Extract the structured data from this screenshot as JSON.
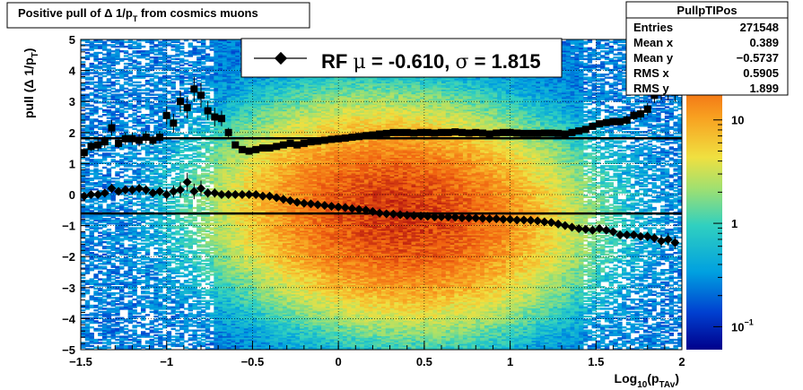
{
  "title": {
    "prefix": "Positive pull of ",
    "delta": "Δ",
    "mid": " 1/p",
    "sub": "T",
    "suffix": " from cosmics muons"
  },
  "stats": {
    "name": "PullpTIPos",
    "rows": [
      {
        "label": "Entries",
        "value": "271548"
      },
      {
        "label": "Mean x",
        "value": "0.389"
      },
      {
        "label": "Mean y",
        "value": "−0.5737"
      },
      {
        "label": "RMS x",
        "value": "0.5905"
      },
      {
        "label": "RMS y",
        "value": "1.899"
      }
    ]
  },
  "legend": {
    "text_prefix": "RF ",
    "mu": "μ",
    "mid": " = -0.610, ",
    "sigma": "σ",
    "suffix": " =   1.815"
  },
  "colors": {
    "marker": "#000000",
    "fit_line": "#000000"
  },
  "chart_data": {
    "type": "heatmap",
    "x_axis": {
      "label_base": "Log",
      "label_sub1": "10",
      "label_paren_open": "(p",
      "label_sub2": "TAv",
      "label_paren_close": ")",
      "range": [
        -1.5,
        2.0
      ],
      "ticks": [
        -1.5,
        -1,
        -0.5,
        0,
        0.5,
        1,
        1.5,
        2
      ],
      "tick_labels": [
        "−1.5",
        "−1",
        "−0.5",
        "0",
        "0.5",
        "1",
        "1.5",
        "2"
      ]
    },
    "y_axis": {
      "label_prefix": "pull (",
      "label_delta": "Δ",
      "label_mid": " 1/p",
      "label_sub": "T",
      "label_close": ")",
      "range": [
        -5,
        5
      ],
      "ticks": [
        -5,
        -4,
        -3,
        -2,
        -1,
        0,
        1,
        2,
        3,
        4,
        5
      ],
      "tick_labels": [
        "−5",
        "−4",
        "−3",
        "−2",
        "−1",
        "0",
        "1",
        "2",
        "3",
        "4",
        "5"
      ]
    },
    "z_axis": {
      "scale": "log",
      "range": [
        0.06,
        60
      ],
      "ticks": [
        0.1,
        1,
        10
      ],
      "tick_labels": [
        {
          "base": "10",
          "exp": "−1"
        },
        {
          "base": "1",
          "exp": ""
        },
        {
          "base": "10",
          "exp": ""
        }
      ]
    },
    "grid": true,
    "fit_lines": {
      "mean": -0.61,
      "sigma": 1.815
    },
    "series": [
      {
        "label": "RMS profile",
        "marker": "square",
        "x": [
          -1.48,
          -1.44,
          -1.4,
          -1.36,
          -1.32,
          -1.28,
          -1.24,
          -1.2,
          -1.16,
          -1.12,
          -1.08,
          -1.04,
          -1.0,
          -0.96,
          -0.92,
          -0.88,
          -0.84,
          -0.8,
          -0.76,
          -0.72,
          -0.68,
          -0.64,
          -0.6,
          -0.56,
          -0.52,
          -0.48,
          -0.44,
          -0.4,
          -0.36,
          -0.32,
          -0.28,
          -0.24,
          -0.2,
          -0.16,
          -0.12,
          -0.08,
          -0.04,
          0.0,
          0.04,
          0.08,
          0.12,
          0.16,
          0.2,
          0.24,
          0.28,
          0.32,
          0.36,
          0.4,
          0.44,
          0.48,
          0.52,
          0.56,
          0.6,
          0.64,
          0.68,
          0.72,
          0.76,
          0.8,
          0.84,
          0.88,
          0.92,
          0.96,
          1.0,
          1.04,
          1.08,
          1.12,
          1.16,
          1.2,
          1.24,
          1.28,
          1.32,
          1.36,
          1.4,
          1.44,
          1.48,
          1.52,
          1.56,
          1.6,
          1.64,
          1.68,
          1.72,
          1.76,
          1.8,
          1.84,
          1.88,
          1.92,
          1.96
        ],
        "y": [
          1.35,
          1.55,
          1.6,
          1.7,
          2.15,
          1.65,
          1.8,
          1.8,
          1.75,
          1.85,
          1.75,
          1.85,
          2.55,
          2.3,
          3.0,
          2.8,
          3.4,
          3.2,
          2.7,
          2.5,
          2.45,
          2.0,
          1.6,
          1.45,
          1.4,
          1.45,
          1.5,
          1.5,
          1.55,
          1.6,
          1.65,
          1.6,
          1.65,
          1.7,
          1.72,
          1.75,
          1.78,
          1.8,
          1.82,
          1.85,
          1.87,
          1.9,
          1.92,
          1.95,
          1.97,
          2.0,
          2.0,
          2.0,
          1.98,
          2.0,
          2.0,
          1.98,
          2.0,
          2.0,
          2.02,
          2.0,
          1.98,
          2.0,
          1.98,
          1.95,
          1.98,
          2.0,
          2.0,
          1.98,
          1.97,
          1.97,
          1.97,
          1.98,
          1.98,
          1.97,
          1.95,
          2.0,
          2.05,
          2.1,
          2.2,
          2.28,
          2.32,
          2.35,
          2.35,
          2.4,
          2.55,
          2.6,
          2.75,
          3.2,
          3.3,
          3.35,
          3.3
        ],
        "err": [
          0.15,
          0.15,
          0.2,
          0.2,
          0.25,
          0.15,
          0.2,
          0.2,
          0.2,
          0.2,
          0.15,
          0.2,
          0.3,
          0.3,
          0.35,
          0.35,
          0.4,
          0.4,
          0.3,
          0.3,
          0.25,
          0.15,
          0.1,
          0.08,
          0.05,
          0.05,
          0.05,
          0.05,
          0.05,
          0.05,
          0.05,
          0.05,
          0.05,
          0.05,
          0.05,
          0.05,
          0.05,
          0.05,
          0.05,
          0.05,
          0.05,
          0.05,
          0.05,
          0.05,
          0.05,
          0.05,
          0.05,
          0.05,
          0.05,
          0.05,
          0.05,
          0.05,
          0.05,
          0.05,
          0.05,
          0.05,
          0.05,
          0.05,
          0.05,
          0.05,
          0.05,
          0.05,
          0.05,
          0.05,
          0.05,
          0.05,
          0.05,
          0.05,
          0.05,
          0.05,
          0.05,
          0.05,
          0.08,
          0.08,
          0.1,
          0.1,
          0.1,
          0.1,
          0.1,
          0.15,
          0.15,
          0.2,
          0.2,
          0.25,
          0.25,
          0.3,
          0.3
        ]
      },
      {
        "label": "Mean profile",
        "marker": "diamond",
        "x": [
          -1.48,
          -1.44,
          -1.4,
          -1.36,
          -1.32,
          -1.28,
          -1.24,
          -1.2,
          -1.16,
          -1.12,
          -1.08,
          -1.04,
          -1.0,
          -0.96,
          -0.92,
          -0.88,
          -0.84,
          -0.8,
          -0.76,
          -0.72,
          -0.68,
          -0.64,
          -0.6,
          -0.56,
          -0.52,
          -0.48,
          -0.44,
          -0.4,
          -0.36,
          -0.32,
          -0.28,
          -0.24,
          -0.2,
          -0.16,
          -0.12,
          -0.08,
          -0.04,
          0.0,
          0.04,
          0.08,
          0.12,
          0.16,
          0.2,
          0.24,
          0.28,
          0.32,
          0.36,
          0.4,
          0.44,
          0.48,
          0.52,
          0.56,
          0.6,
          0.64,
          0.68,
          0.72,
          0.76,
          0.8,
          0.84,
          0.88,
          0.92,
          0.96,
          1.0,
          1.04,
          1.08,
          1.12,
          1.16,
          1.2,
          1.24,
          1.28,
          1.32,
          1.36,
          1.4,
          1.44,
          1.48,
          1.52,
          1.56,
          1.6,
          1.64,
          1.68,
          1.72,
          1.76,
          1.8,
          1.84,
          1.88,
          1.92,
          1.96
        ],
        "y": [
          -0.05,
          0.0,
          0.0,
          0.05,
          0.2,
          0.1,
          0.15,
          0.15,
          0.2,
          0.15,
          0.05,
          0.1,
          0.0,
          0.1,
          0.15,
          0.4,
          0.1,
          0.2,
          0.05,
          0.05,
          0.0,
          0.0,
          0.0,
          0.0,
          0.0,
          0.0,
          -0.05,
          -0.05,
          -0.1,
          -0.15,
          -0.2,
          -0.25,
          -0.28,
          -0.3,
          -0.33,
          -0.35,
          -0.38,
          -0.4,
          -0.42,
          -0.45,
          -0.48,
          -0.5,
          -0.55,
          -0.6,
          -0.62,
          -0.63,
          -0.65,
          -0.67,
          -0.68,
          -0.69,
          -0.7,
          -0.72,
          -0.72,
          -0.72,
          -0.73,
          -0.75,
          -0.75,
          -0.76,
          -0.77,
          -0.78,
          -0.78,
          -0.8,
          -0.8,
          -0.82,
          -0.82,
          -0.83,
          -0.85,
          -0.88,
          -0.9,
          -0.95,
          -1.0,
          -1.05,
          -1.1,
          -1.12,
          -1.15,
          -1.1,
          -1.15,
          -1.2,
          -1.3,
          -1.3,
          -1.3,
          -1.35,
          -1.35,
          -1.4,
          -1.5,
          -1.45,
          -1.55
        ],
        "err": [
          0.1,
          0.1,
          0.1,
          0.1,
          0.15,
          0.1,
          0.15,
          0.15,
          0.15,
          0.15,
          0.1,
          0.15,
          0.2,
          0.2,
          0.25,
          0.3,
          0.25,
          0.25,
          0.15,
          0.15,
          0.1,
          0.08,
          0.05,
          0.05,
          0.05,
          0.05,
          0.05,
          0.05,
          0.05,
          0.05,
          0.05,
          0.05,
          0.05,
          0.05,
          0.05,
          0.05,
          0.05,
          0.05,
          0.05,
          0.05,
          0.05,
          0.05,
          0.05,
          0.05,
          0.05,
          0.05,
          0.05,
          0.05,
          0.05,
          0.05,
          0.05,
          0.05,
          0.05,
          0.05,
          0.05,
          0.05,
          0.05,
          0.05,
          0.05,
          0.05,
          0.05,
          0.05,
          0.05,
          0.05,
          0.05,
          0.05,
          0.05,
          0.05,
          0.05,
          0.05,
          0.05,
          0.05,
          0.06,
          0.06,
          0.08,
          0.08,
          0.08,
          0.1,
          0.1,
          0.1,
          0.1,
          0.12,
          0.15,
          0.15,
          0.2,
          0.2,
          0.2
        ]
      }
    ]
  }
}
